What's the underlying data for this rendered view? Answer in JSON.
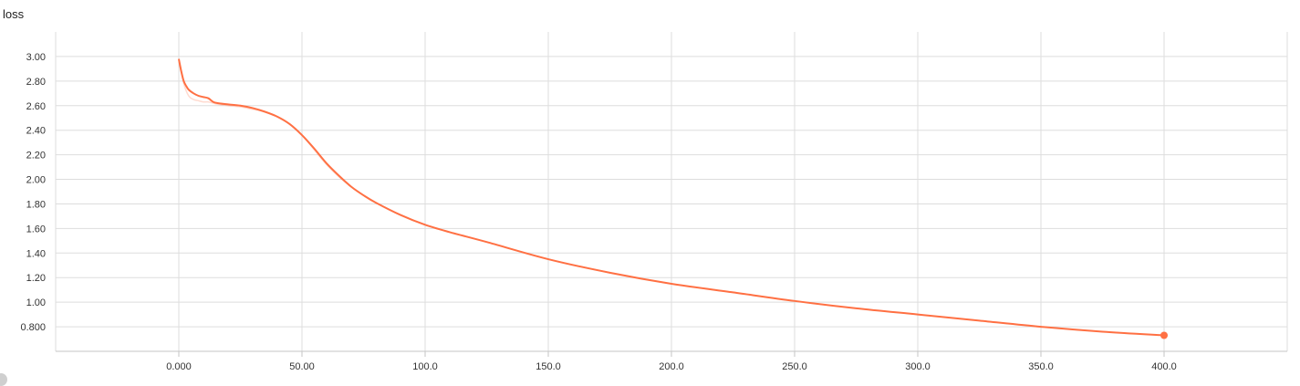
{
  "chart_data": {
    "type": "line",
    "title": "loss",
    "xlabel": "",
    "ylabel": "",
    "xlim": [
      -50,
      450
    ],
    "ylim": [
      0.6,
      3.2
    ],
    "x_ticks": [
      "0.000",
      "50.00",
      "100.0",
      "150.0",
      "200.0",
      "250.0",
      "300.0",
      "350.0",
      "400.0"
    ],
    "x_tick_values": [
      0,
      50,
      100,
      150,
      200,
      250,
      300,
      350,
      400
    ],
    "y_ticks": [
      "0.800",
      "1.00",
      "1.20",
      "1.40",
      "1.60",
      "1.80",
      "2.00",
      "2.20",
      "2.40",
      "2.60",
      "2.80",
      "3.00"
    ],
    "y_tick_values": [
      0.8,
      1.0,
      1.2,
      1.4,
      1.6,
      1.8,
      2.0,
      2.2,
      2.4,
      2.6,
      2.8,
      3.0
    ],
    "grid": true,
    "colors": {
      "series": "#ff7043",
      "grid": "#dddddd",
      "axis": "#c6c6c6"
    },
    "series": [
      {
        "style": "raw-faded",
        "x": [
          0,
          2,
          4,
          6,
          8,
          10,
          12,
          14,
          16,
          20,
          25,
          30,
          35,
          40,
          45,
          50,
          55,
          60,
          65,
          70,
          75,
          80,
          90,
          100,
          110,
          125,
          150,
          175,
          200,
          225,
          250,
          275,
          300,
          325,
          350,
          375,
          400
        ],
        "y": [
          2.96,
          2.78,
          2.68,
          2.65,
          2.64,
          2.63,
          2.63,
          2.62,
          2.61,
          2.6,
          2.59,
          2.57,
          2.55,
          2.51,
          2.45,
          2.36,
          2.24,
          2.12,
          2.02,
          1.94,
          1.87,
          1.81,
          1.71,
          1.63,
          1.57,
          1.49,
          1.35,
          1.24,
          1.15,
          1.08,
          1.01,
          0.95,
          0.9,
          0.85,
          0.8,
          0.76,
          0.73
        ]
      },
      {
        "style": "smoothed",
        "x": [
          0,
          1,
          2,
          3,
          4,
          6,
          8,
          10,
          12,
          14,
          16,
          20,
          25,
          30,
          35,
          40,
          45,
          50,
          55,
          60,
          65,
          70,
          75,
          80,
          90,
          100,
          110,
          125,
          150,
          175,
          200,
          225,
          250,
          275,
          300,
          325,
          350,
          375,
          400
        ],
        "y": [
          2.98,
          2.88,
          2.8,
          2.76,
          2.73,
          2.7,
          2.68,
          2.67,
          2.66,
          2.63,
          2.62,
          2.61,
          2.6,
          2.58,
          2.55,
          2.51,
          2.45,
          2.36,
          2.25,
          2.13,
          2.03,
          1.94,
          1.87,
          1.81,
          1.71,
          1.63,
          1.57,
          1.49,
          1.35,
          1.24,
          1.15,
          1.08,
          1.01,
          0.95,
          0.9,
          0.85,
          0.8,
          0.76,
          0.73
        ]
      }
    ],
    "last_point": {
      "x": 400,
      "y": 0.73
    }
  }
}
